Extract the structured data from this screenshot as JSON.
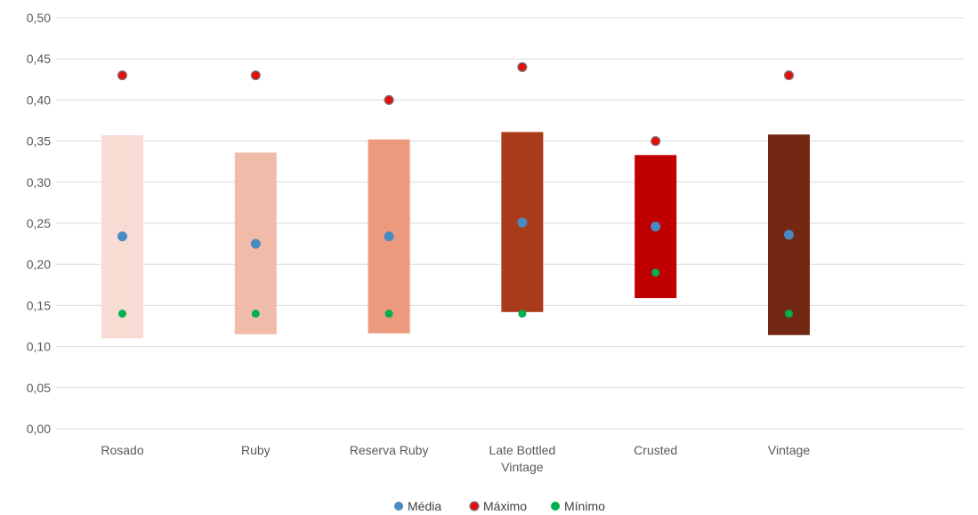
{
  "chart_data": {
    "type": "scatter",
    "categories": [
      "Rosado",
      "Ruby",
      "Reserva Ruby",
      "Late Bottled Vintage",
      "Crusted",
      "Vintage"
    ],
    "category_labels": [
      [
        "Rosado"
      ],
      [
        "Ruby"
      ],
      [
        "Reserva Ruby"
      ],
      [
        "Late Bottled",
        "Vintage"
      ],
      [
        "Crusted"
      ],
      [
        "Vintage"
      ]
    ],
    "range_bars": [
      {
        "low": 0.11,
        "high": 0.357,
        "color": "#f8dbd3"
      },
      {
        "low": 0.115,
        "high": 0.336,
        "color": "#f1bba9"
      },
      {
        "low": 0.116,
        "high": 0.352,
        "color": "#eb9a7e"
      },
      {
        "low": 0.142,
        "high": 0.361,
        "color": "#a93a1a"
      },
      {
        "low": 0.159,
        "high": 0.333,
        "color": "#c00000"
      },
      {
        "low": 0.114,
        "high": 0.358,
        "color": "#722812"
      }
    ],
    "series": [
      {
        "name": "Média",
        "color": "#4a8ac2",
        "values": [
          0.234,
          0.225,
          0.234,
          0.251,
          0.246,
          0.236
        ]
      },
      {
        "name": "Máximo",
        "color": "#e01010",
        "values": [
          0.43,
          0.43,
          0.4,
          0.44,
          0.35,
          0.43
        ]
      },
      {
        "name": "Mínimo",
        "color": "#00b050",
        "values": [
          0.14,
          0.14,
          0.14,
          0.14,
          0.19,
          0.14
        ]
      }
    ],
    "ylim": [
      0,
      0.5
    ],
    "yticks": [
      "0,00",
      "0,05",
      "0,10",
      "0,15",
      "0,20",
      "0,25",
      "0,30",
      "0,35",
      "0,40",
      "0,45",
      "0,50"
    ],
    "grid": true,
    "legend_position": "bottom",
    "colors": {
      "grid": "#d9d9d9",
      "text": "#595959",
      "max_marker_outline": "#7f7f7f"
    }
  }
}
